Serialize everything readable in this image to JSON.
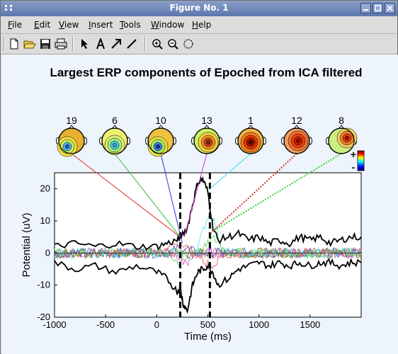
{
  "window": {
    "title": "Figure No. 1"
  },
  "menu": [
    {
      "label": "File",
      "key": "F"
    },
    {
      "label": "Edit",
      "key": "E"
    },
    {
      "label": "View",
      "key": "V"
    },
    {
      "label": "Insert",
      "key": "I"
    },
    {
      "label": "Tools",
      "key": "T"
    },
    {
      "label": "Window",
      "key": "W"
    },
    {
      "label": "Help",
      "key": "H"
    }
  ],
  "toolbar": {
    "tools": [
      "new-figure-icon",
      "open-folder-icon",
      "save-icon",
      "print-icon",
      "select-arrow-icon",
      "insert-text-icon",
      "insert-arrow-icon",
      "insert-line-icon",
      "zoom-in-icon",
      "zoom-out-icon",
      "rotate-3d-icon"
    ]
  },
  "figure": {
    "title": "Largest ERP components of Epoched from ICA filtered"
  },
  "chart_data": {
    "type": "line",
    "title": "Largest ERP components of Epoched from ICA filtered",
    "xlabel": "Time (ms)",
    "ylabel": "Potential (uV)",
    "xlim": [
      -1000,
      2000
    ],
    "ylim": [
      -20,
      25
    ],
    "xticks": [
      -1000,
      -500,
      0,
      500,
      1000,
      1500
    ],
    "yticks": [
      -20,
      -10,
      0,
      10,
      20
    ],
    "grid": false,
    "marker_lines_ms": [
      230,
      520
    ],
    "colorbar_labels": [
      "+",
      "-"
    ],
    "components": [
      {
        "id": "19",
        "color": "#e03030",
        "linestyle": "solid",
        "peak_time_ms": 230,
        "peak_uv": 5
      },
      {
        "id": "6",
        "color": "#30c030",
        "linestyle": "solid",
        "peak_time_ms": 230,
        "peak_uv": 5
      },
      {
        "id": "10",
        "color": "#3030d0",
        "linestyle": "solid",
        "peak_time_ms": 250,
        "peak_uv": 3
      },
      {
        "id": "13",
        "color": "#d030d0",
        "linestyle": "solid",
        "peak_time_ms": 270,
        "peak_uv": 5
      },
      {
        "id": "1",
        "color": "#30e0f0",
        "linestyle": "solid",
        "peak_time_ms": 520,
        "peak_uv": 20
      },
      {
        "id": "12",
        "color": "#d03030",
        "linestyle": "dotted",
        "peak_time_ms": 520,
        "peak_uv": 6
      },
      {
        "id": "8",
        "color": "#30d030",
        "linestyle": "dotted",
        "peak_time_ms": 560,
        "peak_uv": 7
      }
    ],
    "envelope_series": [
      {
        "name": "",
        "color": "#000000",
        "x": [
          -1000,
          -800,
          -600,
          -400,
          -200,
          0,
          100,
          200,
          230,
          300,
          350,
          400,
          450,
          500,
          550,
          600,
          700,
          800,
          900,
          1000,
          1100,
          1200,
          1300,
          1400,
          1500,
          1600,
          1700,
          1800,
          1900,
          2000
        ],
        "y": [
          2,
          3,
          2,
          3,
          2,
          2,
          3,
          4,
          5,
          8,
          15,
          22,
          23,
          19,
          8,
          4,
          5,
          6,
          4,
          5,
          3,
          4,
          3,
          5,
          4,
          5,
          3,
          4,
          5,
          5
        ]
      },
      {
        "name": "",
        "color": "#000000",
        "x": [
          -1000,
          -800,
          -600,
          -400,
          -200,
          0,
          100,
          200,
          230,
          260,
          300,
          350,
          400,
          450,
          500,
          550,
          600,
          700,
          800,
          900,
          1000,
          1100,
          1200,
          1300,
          1400,
          1500,
          1600,
          1700,
          1800,
          1900,
          2000
        ],
        "y": [
          -3,
          -5,
          -4,
          -6,
          -4,
          -6,
          -8,
          -12,
          -11,
          -16,
          -18,
          -10,
          -6,
          -5,
          -4,
          -6,
          -10,
          -8,
          -5,
          -4,
          -3,
          -4,
          -3,
          -4,
          -3,
          -4,
          -3,
          -3,
          -4,
          -3,
          -3
        ]
      }
    ]
  }
}
